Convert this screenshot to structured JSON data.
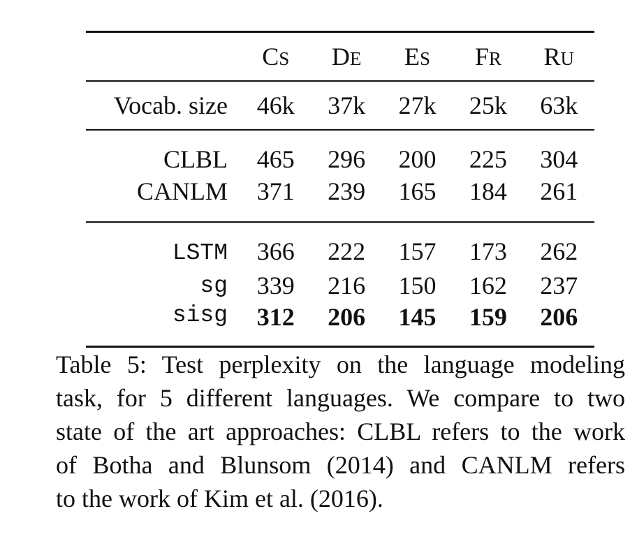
{
  "table": {
    "header": [
      {
        "first": "C",
        "rest": "S"
      },
      {
        "first": "D",
        "rest": "E"
      },
      {
        "first": "E",
        "rest": "S"
      },
      {
        "first": "F",
        "rest": "R"
      },
      {
        "first": "R",
        "rest": "U"
      }
    ],
    "vocab": {
      "label": "Vocab. size",
      "values": [
        "46k",
        "37k",
        "27k",
        "25k",
        "63k"
      ]
    },
    "baselines": [
      {
        "label": "CLBL",
        "values": [
          "465",
          "296",
          "200",
          "225",
          "304"
        ]
      },
      {
        "label": "CANLM",
        "values": [
          "371",
          "239",
          "165",
          "184",
          "261"
        ]
      }
    ],
    "ours": [
      {
        "label": "LSTM",
        "values": [
          "366",
          "222",
          "157",
          "173",
          "262"
        ]
      },
      {
        "label": "sg",
        "values": [
          "339",
          "216",
          "150",
          "162",
          "237"
        ]
      },
      {
        "label": "sisg",
        "values": [
          "312",
          "206",
          "145",
          "159",
          "206"
        ]
      }
    ]
  },
  "caption": {
    "lines": [
      "Table 5: Test perplexity on the language modeling",
      "task, for 5 different languages. We compare to two",
      "state of the art approaches: CLBL refers to the work",
      "of Botha and Blunsom (2014) and CANLM refers",
      "to the work of Kim et al. (2016)."
    ]
  }
}
